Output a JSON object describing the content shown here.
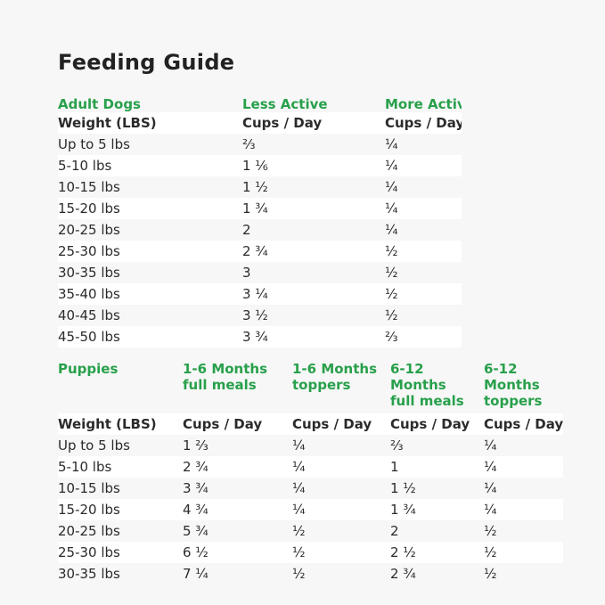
{
  "page": {
    "title": "Feeding Guide",
    "background_color": "#f7f7f7",
    "stripe_color": "#ffffff",
    "accent_green": "#28a04b",
    "text_color": "#2b2b2b"
  },
  "adult": {
    "section": "Adult Dogs",
    "columns": [
      "Less Active",
      "More Active"
    ],
    "weight_header": "Weight (LBS)",
    "cups_header": "Cups / Day",
    "rows": [
      {
        "weight": "Up to 5 lbs",
        "less": "⅔",
        "more": "¼"
      },
      {
        "weight": "5-10 lbs",
        "less": "1 ⅙",
        "more": "¼"
      },
      {
        "weight": "10-15 lbs",
        "less": "1 ½",
        "more": "¼"
      },
      {
        "weight": "15-20 lbs",
        "less": "1 ¾",
        "more": "¼"
      },
      {
        "weight": "20-25 lbs",
        "less": "2",
        "more": "¼"
      },
      {
        "weight": "25-30 lbs",
        "less": "2 ¾",
        "more": "½"
      },
      {
        "weight": "30-35 lbs",
        "less": "3",
        "more": "½"
      },
      {
        "weight": "35-40 lbs",
        "less": "3 ¼",
        "more": "½"
      },
      {
        "weight": "40-45 lbs",
        "less": "3 ½",
        "more": "½"
      },
      {
        "weight": "45-50 lbs",
        "less": "3 ¾",
        "more": "⅔"
      }
    ]
  },
  "puppies": {
    "section": "Puppies",
    "columns": [
      {
        "line1": "1-6 Months",
        "line2": "full meals"
      },
      {
        "line1": "1-6 Months",
        "line2": "toppers"
      },
      {
        "line1": "6-12 Months",
        "line2": "full meals"
      },
      {
        "line1": "6-12 Months",
        "line2": "toppers"
      }
    ],
    "weight_header": "Weight (LBS)",
    "cups_header": "Cups / Day",
    "rows": [
      {
        "weight": "Up to 5 lbs",
        "c1": "1 ⅔",
        "c2": "¼",
        "c3": "⅔",
        "c4": "¼"
      },
      {
        "weight": "5-10 lbs",
        "c1": "2 ¾",
        "c2": "¼",
        "c3": "1",
        "c4": "¼"
      },
      {
        "weight": "10-15 lbs",
        "c1": "3 ¾",
        "c2": "¼",
        "c3": "1 ½",
        "c4": "¼"
      },
      {
        "weight": "15-20 lbs",
        "c1": "4 ¾",
        "c2": "¼",
        "c3": "1 ¾",
        "c4": "¼"
      },
      {
        "weight": "20-25 lbs",
        "c1": "5 ¾",
        "c2": "½",
        "c3": "2",
        "c4": "½"
      },
      {
        "weight": "25-30 lbs",
        "c1": "6 ½",
        "c2": "½",
        "c3": "2 ½",
        "c4": "½"
      },
      {
        "weight": "30-35 lbs",
        "c1": "7 ¼",
        "c2": "½",
        "c3": "2 ¾",
        "c4": "½"
      }
    ]
  }
}
